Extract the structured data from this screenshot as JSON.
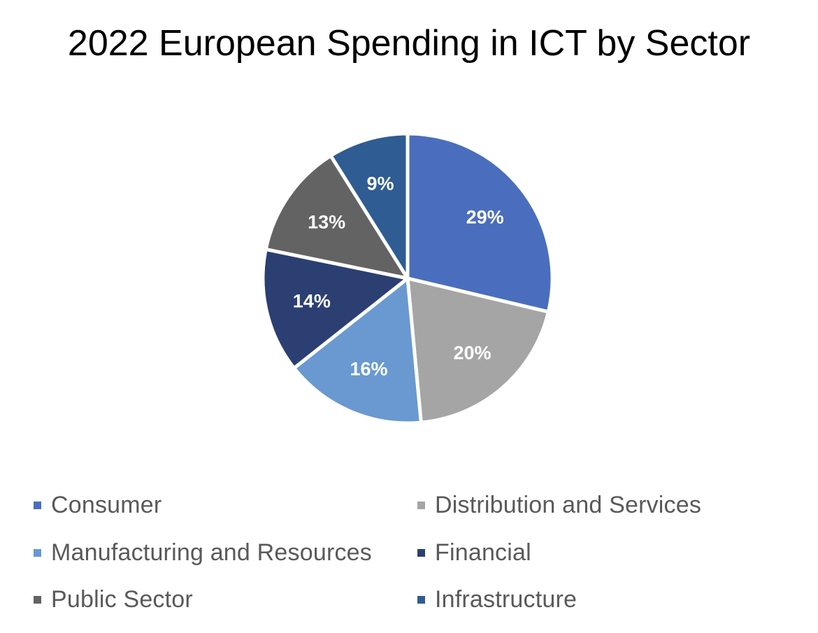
{
  "chart_data": {
    "type": "pie",
    "title": "2022 European Spending in ICT by Sector",
    "legend_position": "bottom",
    "slices": [
      {
        "label": "Consumer",
        "value": 29,
        "display": "29%",
        "color": "#4a6ebd"
      },
      {
        "label": "Distribution and Services",
        "value": 20,
        "display": "20%",
        "color": "#a5a5a5"
      },
      {
        "label": "Manufacturing and Resources",
        "value": 16,
        "display": "16%",
        "color": "#6999d0"
      },
      {
        "label": "Financial",
        "value": 14,
        "display": "14%",
        "color": "#2c3f72"
      },
      {
        "label": "Public Sector",
        "value": 13,
        "display": "13%",
        "color": "#636363"
      },
      {
        "label": "Infrastructure",
        "value": 9,
        "display": "9%",
        "color": "#2f5c92"
      }
    ]
  }
}
